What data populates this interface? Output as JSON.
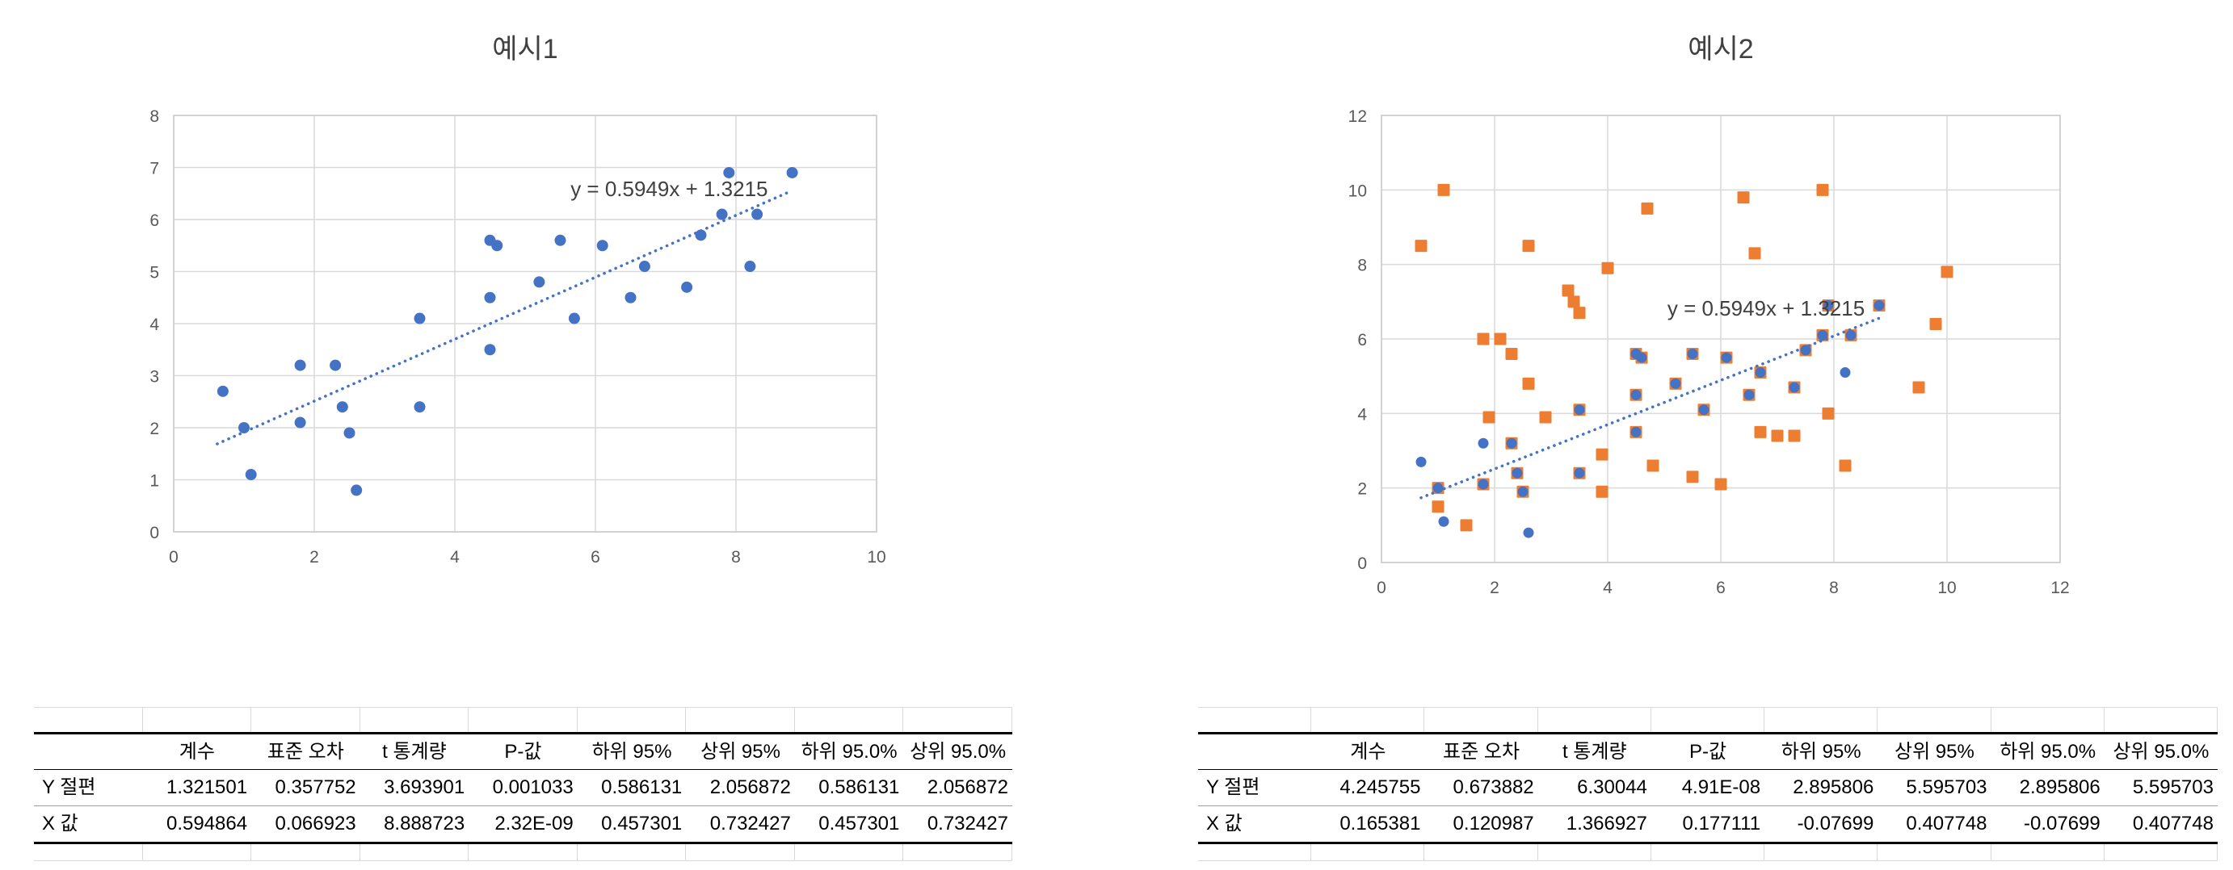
{
  "colors": {
    "series_blue": "#4472C4",
    "series_orange": "#ED7D31",
    "gridline": "#D9D9D9",
    "plot_frame": "#C9C9C9",
    "tick_label": "#595959",
    "title_text": "#404040",
    "equation_text": "#404040",
    "table_text": "#000000"
  },
  "chart_data": [
    {
      "type": "scatter",
      "title": "예시1",
      "xlabel": "",
      "ylabel": "",
      "xlim": [
        0,
        10
      ],
      "ylim": [
        0,
        8
      ],
      "x_ticks": [
        0,
        2,
        4,
        6,
        8,
        10
      ],
      "y_ticks": [
        0,
        1,
        2,
        3,
        4,
        5,
        6,
        7,
        8
      ],
      "grid": true,
      "equation_label": "y = 0.5949x + 1.3215",
      "trendline": {
        "slope": 0.5949,
        "intercept": 1.3215,
        "x_start": 0.62,
        "x_end": 8.75,
        "style": "dotted"
      },
      "equation_anchor": [
        7.05,
        6.45
      ],
      "series": [
        {
          "name": "blue-dots",
          "marker": "circle",
          "color": "#4472C4",
          "points": [
            [
              0.7,
              2.7
            ],
            [
              1.0,
              2.0
            ],
            [
              1.1,
              1.1
            ],
            [
              1.8,
              3.2
            ],
            [
              1.8,
              2.1
            ],
            [
              2.3,
              3.2
            ],
            [
              2.4,
              2.4
            ],
            [
              2.5,
              1.9
            ],
            [
              2.6,
              0.8
            ],
            [
              3.5,
              4.1
            ],
            [
              3.5,
              2.4
            ],
            [
              4.5,
              5.6
            ],
            [
              4.6,
              5.5
            ],
            [
              4.5,
              4.5
            ],
            [
              4.5,
              3.5
            ],
            [
              5.2,
              4.8
            ],
            [
              5.5,
              5.6
            ],
            [
              5.7,
              4.1
            ],
            [
              6.1,
              5.5
            ],
            [
              6.5,
              4.5
            ],
            [
              6.7,
              5.1
            ],
            [
              7.3,
              4.7
            ],
            [
              7.5,
              5.7
            ],
            [
              7.8,
              6.1
            ],
            [
              7.9,
              6.9
            ],
            [
              8.2,
              5.1
            ],
            [
              8.3,
              6.1
            ],
            [
              8.8,
              6.9
            ]
          ]
        }
      ]
    },
    {
      "type": "scatter",
      "title": "예시2",
      "xlabel": "",
      "ylabel": "",
      "xlim": [
        0,
        12
      ],
      "ylim": [
        0,
        12
      ],
      "x_ticks": [
        0,
        2,
        4,
        6,
        8,
        10,
        12
      ],
      "y_ticks": [
        0,
        2,
        4,
        6,
        8,
        10,
        12
      ],
      "grid": true,
      "equation_label": "y = 0.5949x + 1.3215",
      "trendline": {
        "slope": 0.5949,
        "intercept": 1.3215,
        "x_start": 0.7,
        "x_end": 8.8,
        "style": "dotted"
      },
      "equation_anchor": [
        6.8,
        6.63
      ],
      "series": [
        {
          "name": "orange-squares",
          "marker": "square",
          "color": "#ED7D31",
          "points": [
            [
              0.7,
              8.5
            ],
            [
              1.0,
              1.5
            ],
            [
              1.1,
              10.0
            ],
            [
              1.5,
              1.0
            ],
            [
              1.8,
              6.0
            ],
            [
              1.9,
              3.9
            ],
            [
              2.1,
              6.0
            ],
            [
              2.3,
              5.6
            ],
            [
              2.6,
              8.5
            ],
            [
              2.6,
              4.8
            ],
            [
              2.9,
              3.9
            ],
            [
              3.3,
              7.3
            ],
            [
              3.4,
              7.0
            ],
            [
              3.5,
              6.7
            ],
            [
              3.9,
              2.9
            ],
            [
              3.9,
              1.9
            ],
            [
              4.0,
              7.9
            ],
            [
              4.7,
              9.5
            ],
            [
              4.8,
              2.6
            ],
            [
              5.5,
              2.3
            ],
            [
              6.0,
              2.1
            ],
            [
              6.4,
              9.8
            ],
            [
              6.6,
              8.3
            ],
            [
              6.7,
              3.5
            ],
            [
              7.0,
              3.4
            ],
            [
              7.3,
              3.4
            ],
            [
              7.8,
              10.0
            ],
            [
              7.9,
              4.0
            ],
            [
              8.2,
              2.6
            ],
            [
              9.5,
              4.7
            ],
            [
              9.8,
              6.4
            ],
            [
              10.0,
              7.8
            ],
            [
              1.0,
              2.0
            ],
            [
              1.8,
              2.1
            ],
            [
              2.3,
              3.2
            ],
            [
              2.4,
              2.4
            ],
            [
              2.5,
              1.9
            ],
            [
              3.5,
              4.1
            ],
            [
              3.5,
              2.4
            ],
            [
              4.5,
              5.6
            ],
            [
              4.6,
              5.5
            ],
            [
              4.5,
              4.5
            ],
            [
              4.5,
              3.5
            ],
            [
              5.2,
              4.8
            ],
            [
              5.5,
              5.6
            ],
            [
              5.7,
              4.1
            ],
            [
              6.1,
              5.5
            ],
            [
              6.5,
              4.5
            ],
            [
              6.7,
              5.1
            ],
            [
              7.3,
              4.7
            ],
            [
              7.5,
              5.7
            ],
            [
              7.8,
              6.1
            ],
            [
              7.9,
              6.9
            ],
            [
              8.3,
              6.1
            ],
            [
              8.8,
              6.9
            ]
          ]
        },
        {
          "name": "blue-dots",
          "marker": "circle",
          "color": "#4472C4",
          "points": [
            [
              0.7,
              2.7
            ],
            [
              1.0,
              2.0
            ],
            [
              1.1,
              1.1
            ],
            [
              1.8,
              3.2
            ],
            [
              1.8,
              2.1
            ],
            [
              2.3,
              3.2
            ],
            [
              2.4,
              2.4
            ],
            [
              2.5,
              1.9
            ],
            [
              2.6,
              0.8
            ],
            [
              3.5,
              4.1
            ],
            [
              3.5,
              2.4
            ],
            [
              4.5,
              5.6
            ],
            [
              4.6,
              5.5
            ],
            [
              4.5,
              4.5
            ],
            [
              4.5,
              3.5
            ],
            [
              5.2,
              4.8
            ],
            [
              5.5,
              5.6
            ],
            [
              5.7,
              4.1
            ],
            [
              6.1,
              5.5
            ],
            [
              6.5,
              4.5
            ],
            [
              6.7,
              5.1
            ],
            [
              7.3,
              4.7
            ],
            [
              7.5,
              5.7
            ],
            [
              7.8,
              6.1
            ],
            [
              7.9,
              6.9
            ],
            [
              8.2,
              5.1
            ],
            [
              8.3,
              6.1
            ],
            [
              8.8,
              6.9
            ]
          ]
        }
      ]
    }
  ],
  "tables": [
    {
      "name": "regression-output-example1",
      "headers": [
        "",
        "계수",
        "표준 오차",
        "t 통계량",
        "P-값",
        "하위 95%",
        "상위 95%",
        "하위 95.0%",
        "상위 95.0%"
      ],
      "rows": [
        {
          "label": "Y 절편",
          "values": [
            "1.321501",
            "0.357752",
            "3.693901",
            "0.001033",
            "0.586131",
            "2.056872",
            "0.586131",
            "2.056872"
          ]
        },
        {
          "label": "X 값",
          "values": [
            "0.594864",
            "0.066923",
            "8.888723",
            "2.32E-09",
            "0.457301",
            "0.732427",
            "0.457301",
            "0.732427"
          ]
        }
      ]
    },
    {
      "name": "regression-output-example2",
      "headers": [
        "",
        "계수",
        "표준 오차",
        "t 통계량",
        "P-값",
        "하위 95%",
        "상위 95%",
        "하위 95.0%",
        "상위 95.0%"
      ],
      "rows": [
        {
          "label": "Y 절편",
          "values": [
            "4.245755",
            "0.673882",
            "6.30044",
            "4.91E-08",
            "2.895806",
            "5.595703",
            "2.895806",
            "5.595703"
          ]
        },
        {
          "label": "X 값",
          "values": [
            "0.165381",
            "0.120987",
            "1.366927",
            "0.177111",
            "-0.07699",
            "0.407748",
            "-0.07699",
            "0.407748"
          ]
        }
      ]
    }
  ]
}
